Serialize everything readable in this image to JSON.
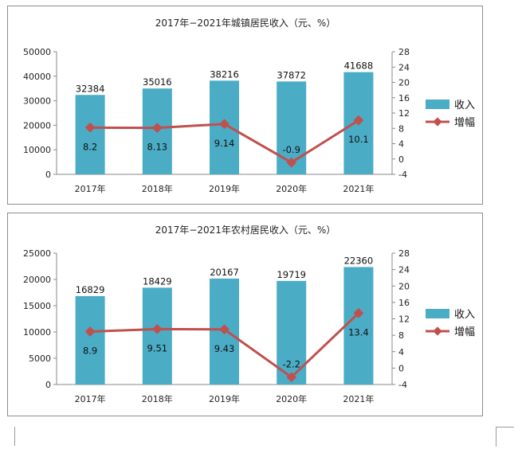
{
  "chart_data": [
    {
      "type": "bar",
      "title": "2017年−2021年城镇居民收入（元、%）",
      "categories": [
        "2017年",
        "2018年",
        "2019年",
        "2020年",
        "2021年"
      ],
      "series": [
        {
          "name": "收入",
          "type": "bar",
          "axis": "left",
          "color": "#4bacc6",
          "values": [
            32384,
            35016,
            38216,
            37872,
            41688
          ],
          "labels": [
            "32384",
            "35016",
            "38216",
            "37872",
            "41688"
          ]
        },
        {
          "name": "增幅",
          "type": "line",
          "axis": "right",
          "color": "#c0504d",
          "values": [
            8.2,
            8.13,
            9.14,
            -0.9,
            10.1
          ],
          "labels": [
            "8.2",
            "8.13",
            "9.14",
            "-0.9",
            "10.1"
          ]
        }
      ],
      "ylim": [
        0,
        50000
      ],
      "yticks": [
        "0",
        "10000",
        "20000",
        "30000",
        "40000",
        "50000"
      ],
      "y2lim": [
        -4,
        28
      ],
      "y2ticks": [
        "-4",
        "0",
        "4",
        "8",
        "12",
        "16",
        "20",
        "24",
        "28"
      ],
      "legend": "right",
      "grid": false
    },
    {
      "type": "bar",
      "title": "2017年−2021年农村居民收入（元、%）",
      "categories": [
        "2017年",
        "2018年",
        "2019年",
        "2020年",
        "2021年"
      ],
      "series": [
        {
          "name": "收入",
          "type": "bar",
          "axis": "left",
          "color": "#4bacc6",
          "values": [
            16829,
            18429,
            20167,
            19719,
            22360
          ],
          "labels": [
            "16829",
            "18429",
            "20167",
            "19719",
            "22360"
          ]
        },
        {
          "name": "增幅",
          "type": "line",
          "axis": "right",
          "color": "#c0504d",
          "values": [
            8.9,
            9.51,
            9.43,
            -2.2,
            13.4
          ],
          "labels": [
            "8.9",
            "9.51",
            "9.43",
            "-2.2",
            "13.4"
          ]
        }
      ],
      "ylim": [
        0,
        25000
      ],
      "yticks": [
        "0",
        "5000",
        "10000",
        "15000",
        "20000",
        "25000"
      ],
      "y2lim": [
        -4,
        28
      ],
      "y2ticks": [
        "-4",
        "0",
        "4",
        "8",
        "12",
        "16",
        "20",
        "24",
        "28"
      ],
      "legend": "right",
      "grid": false
    }
  ]
}
